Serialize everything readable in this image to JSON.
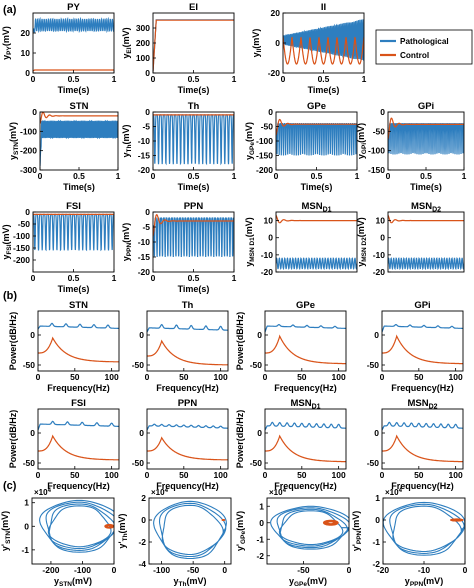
{
  "figure": {
    "panel_labels": [
      "(a)",
      "(b)",
      "(c)"
    ],
    "legend": {
      "placement": "right of row 1",
      "entries": [
        {
          "name": "Pathological",
          "color": "#2e7ebf"
        },
        {
          "name": "Control",
          "color": "#d95319"
        }
      ]
    },
    "colors": {
      "pathological": "#2e7ebf",
      "control": "#d95319"
    }
  },
  "chart_data": [
    {
      "id": "a_py",
      "type": "line",
      "title": "PY",
      "xlabel": "Time(s)",
      "ylabel": "y_PY(mV)",
      "xlim": [
        0,
        1
      ],
      "xticks": [
        "0",
        "0.5",
        "1"
      ],
      "ylim": [
        0,
        30
      ],
      "yticks": [
        "0",
        "10",
        "20"
      ],
      "series": [
        {
          "name": "Pathological",
          "pattern": "osc",
          "start": 20,
          "mid": 24,
          "amp": 3,
          "cycles": 38,
          "rise": 0.03
        },
        {
          "name": "Control",
          "pattern": "flat",
          "start": 1,
          "value": 1.5
        }
      ]
    },
    {
      "id": "a_ei",
      "type": "line",
      "title": "EI",
      "xlabel": "Time(s)",
      "ylabel": "y_EI(mV)",
      "xlim": [
        0,
        1
      ],
      "xticks": [
        "0",
        "0.5",
        "1"
      ],
      "ylim": [
        0,
        400
      ],
      "yticks": [
        "0",
        "100",
        "200",
        "300"
      ],
      "series": [
        {
          "name": "Pathological",
          "pattern": "rise",
          "start": 10,
          "value": 355,
          "rise": 0.04
        },
        {
          "name": "Control",
          "pattern": "rise",
          "start": 10,
          "value": 352,
          "rise": 0.04
        }
      ]
    },
    {
      "id": "a_ii",
      "type": "line",
      "title": "II",
      "xlabel": "Time(s)",
      "ylabel": "y_II(mV)",
      "xlim": [
        0,
        1
      ],
      "xticks": [
        "0",
        "0.5",
        "1"
      ],
      "ylim": [
        -20,
        20
      ],
      "yticks": [
        "-20",
        "0",
        "20"
      ],
      "series": [
        {
          "name": "Pathological",
          "pattern": "widen",
          "start": 0,
          "mid": 2,
          "amp": 14,
          "amp0": 3,
          "cycles": 55
        },
        {
          "name": "Control",
          "pattern": "scallop",
          "start": 0,
          "top": 4,
          "bottom": -14,
          "cycles": 9
        }
      ]
    },
    {
      "id": "a_stn",
      "type": "line",
      "title": "STN",
      "xlabel": "Time(s)",
      "ylabel": "y_STN(mV)",
      "xlim": [
        0,
        1
      ],
      "xticks": [
        "0",
        "0.5",
        "1"
      ],
      "ylim": [
        -300,
        0
      ],
      "yticks": [
        "-300",
        "-200",
        "-100",
        "0"
      ],
      "series": [
        {
          "name": "Pathological",
          "pattern": "osc",
          "start": -280,
          "mid": -90,
          "amp": 45,
          "cycles": 55,
          "rise": 0.02
        },
        {
          "name": "Control",
          "pattern": "damp",
          "start": -60,
          "value": -20,
          "cycles": 12
        }
      ]
    },
    {
      "id": "a_th",
      "type": "line",
      "title": "Th",
      "xlabel": "Time(s)",
      "ylabel": "y_Th(mV)",
      "xlim": [
        0,
        1
      ],
      "xticks": [
        "0",
        "0.5",
        "1"
      ],
      "ylim": [
        -20,
        0
      ],
      "yticks": [
        "-20",
        "-15",
        "-10",
        "-5",
        "0"
      ],
      "series": [
        {
          "name": "Pathological",
          "pattern": "spikes",
          "start": -1,
          "top": -1,
          "bottom": -18,
          "cycles": 22
        },
        {
          "name": "Control",
          "pattern": "flat",
          "start": -1,
          "value": -1
        }
      ]
    },
    {
      "id": "a_gpe",
      "type": "line",
      "title": "GPe",
      "xlabel": "Time(s)",
      "ylabel": "y_GPe(mV)",
      "xlim": [
        0,
        1
      ],
      "xticks": [
        "0",
        "0.5",
        "1"
      ],
      "ylim": [
        -200,
        0
      ],
      "yticks": [
        "-200",
        "-150",
        "-100",
        "-50",
        "0"
      ],
      "series": [
        {
          "name": "Pathological",
          "pattern": "spikes",
          "start": -60,
          "top": -40,
          "bottom": -150,
          "cycles": 38
        },
        {
          "name": "Control",
          "pattern": "damp",
          "start": -80,
          "value": -42,
          "cycles": 10
        }
      ]
    },
    {
      "id": "a_gpi",
      "type": "line",
      "title": "GPi",
      "xlabel": "Time(s)",
      "ylabel": "y_GPi(mV)",
      "xlim": [
        0,
        1
      ],
      "xticks": [
        "0",
        "0.5",
        "1"
      ],
      "ylim": [
        -150,
        0
      ],
      "yticks": [
        "-150",
        "-100",
        "-50",
        "0"
      ],
      "series": [
        {
          "name": "Pathological",
          "pattern": "spikes",
          "start": -60,
          "top": -30,
          "bottom": -110,
          "cycles": 38
        },
        {
          "name": "Control",
          "pattern": "damp",
          "start": -70,
          "value": -32,
          "cycles": 10
        }
      ]
    },
    {
      "id": "a_fsi",
      "type": "line",
      "title": "FSI",
      "xlabel": "Time(s)",
      "ylabel": "y_FSI(mV)",
      "xlim": [
        0,
        1
      ],
      "xticks": [
        "0",
        "0.5",
        "1"
      ],
      "ylim": [
        -250,
        0
      ],
      "yticks": [
        "-200",
        "-150",
        "-100",
        "-50",
        "0"
      ],
      "series": [
        {
          "name": "Pathological",
          "pattern": "spikes",
          "start": -10,
          "top": -10,
          "bottom": -160,
          "cycles": 22
        },
        {
          "name": "Control",
          "pattern": "flat",
          "start": -10,
          "value": -10
        }
      ]
    },
    {
      "id": "a_ppn",
      "type": "line",
      "title": "PPN",
      "xlabel": "Time(s)",
      "ylabel": "y_PPN(mV)",
      "xlim": [
        0,
        1
      ],
      "xticks": [
        "0",
        "0.5",
        "1"
      ],
      "ylim": [
        -20,
        0
      ],
      "yticks": [
        "-20",
        "-15",
        "-10",
        "-5",
        "0"
      ],
      "series": [
        {
          "name": "Pathological",
          "pattern": "spikes",
          "start": -5,
          "top": -2,
          "bottom": -15,
          "cycles": 30
        },
        {
          "name": "Control",
          "pattern": "damp",
          "start": -8,
          "value": -3,
          "cycles": 10
        }
      ]
    },
    {
      "id": "a_msnd1",
      "type": "line",
      "title": "MSN",
      "title_sub": "D1",
      "xlabel": "",
      "ylabel": "y_MSN_D1(mV)",
      "xlim": [
        0,
        1
      ],
      "xticks": [],
      "ylim": [
        -20,
        15
      ],
      "yticks": [
        "-20",
        "-10",
        "0",
        "10"
      ],
      "series": [
        {
          "name": "Pathological",
          "pattern": "osc",
          "start": -14,
          "mid": -15,
          "amp": 3,
          "cycles": 30,
          "rise": 0
        },
        {
          "name": "Control",
          "pattern": "damp",
          "start": 13,
          "value": 10,
          "cycles": 10
        }
      ]
    },
    {
      "id": "a_msnd2",
      "type": "line",
      "title": "MSN",
      "title_sub": "D2",
      "xlabel": "",
      "ylabel": "y_MSN_D2(mV)",
      "xlim": [
        0,
        1
      ],
      "xticks": [],
      "ylim": [
        -20,
        15
      ],
      "yticks": [
        "-20",
        "-10",
        "0",
        "10"
      ],
      "series": [
        {
          "name": "Pathological",
          "pattern": "osc",
          "start": -14,
          "mid": -15,
          "amp": 3,
          "cycles": 30,
          "rise": 0
        },
        {
          "name": "Control",
          "pattern": "damp",
          "start": 13,
          "value": 10,
          "cycles": 10
        }
      ]
    },
    {
      "id": "b_stn",
      "type": "line",
      "title": "STN",
      "xlabel": "Frequency(Hz)",
      "ylabel": "Power(dB/Hz)",
      "xlim": [
        0,
        110
      ],
      "xticks": [
        "0",
        "50",
        "100"
      ],
      "ylim": [
        -60,
        40
      ],
      "yticks": [
        "-50",
        "0"
      ],
      "series": [
        {
          "name": "Pathological",
          "pattern": "peaks",
          "start": 10,
          "base": 15,
          "peak": 20,
          "f0": 19,
          "n": 5
        },
        {
          "name": "Control",
          "pattern": "decay",
          "start": -30,
          "peak": -5,
          "f0": 20,
          "end": -45
        }
      ]
    },
    {
      "id": "b_th",
      "type": "line",
      "title": "Th",
      "xlabel": "Frequency(Hz)",
      "ylabel": "",
      "xlim": [
        0,
        110
      ],
      "xticks": [
        "0",
        "50",
        "100"
      ],
      "ylim": [
        -60,
        40
      ],
      "yticks": [
        "-50",
        "0"
      ],
      "series": [
        {
          "name": "Pathological",
          "pattern": "peaks",
          "start": 5,
          "base": 12,
          "peak": 18,
          "f0": 20,
          "n": 5
        },
        {
          "name": "Control",
          "pattern": "decay",
          "start": -35,
          "peak": -10,
          "f0": 20,
          "end": -50
        }
      ]
    },
    {
      "id": "b_gpe",
      "type": "line",
      "title": "GPe",
      "xlabel": "Frequency(Hz)",
      "ylabel": "Power(dB/Hz)",
      "xlim": [
        0,
        110
      ],
      "xticks": [
        "0",
        "50",
        "100"
      ],
      "ylim": [
        -60,
        40
      ],
      "yticks": [
        "-50",
        "0"
      ],
      "series": [
        {
          "name": "Pathological",
          "pattern": "peaks",
          "start": 5,
          "base": 15,
          "peak": 18,
          "f0": 19,
          "n": 5
        },
        {
          "name": "Control",
          "pattern": "decay",
          "start": -30,
          "peak": -2,
          "f0": 20,
          "end": -48
        }
      ]
    },
    {
      "id": "b_gpi",
      "type": "line",
      "title": "GPi",
      "xlabel": "Frequency(Hz)",
      "ylabel": "",
      "xlim": [
        0,
        110
      ],
      "xticks": [
        "0",
        "50",
        "100"
      ],
      "ylim": [
        -60,
        40
      ],
      "yticks": [
        "-50",
        "0"
      ],
      "series": [
        {
          "name": "Pathological",
          "pattern": "peaks",
          "start": 5,
          "base": 15,
          "peak": 18,
          "f0": 19,
          "n": 5
        },
        {
          "name": "Control",
          "pattern": "decay",
          "start": -30,
          "peak": -2,
          "f0": 20,
          "end": -48
        }
      ]
    },
    {
      "id": "b_fsi",
      "type": "line",
      "title": "FSI",
      "xlabel": "Frequency(Hz)",
      "ylabel": "Power(dB/Hz)",
      "xlim": [
        0,
        110
      ],
      "xticks": [
        "0",
        "50",
        "100"
      ],
      "ylim": [
        -60,
        40
      ],
      "yticks": [
        "-50",
        "0"
      ],
      "series": [
        {
          "name": "Pathological",
          "pattern": "peaks",
          "start": 5,
          "base": 15,
          "peak": 20,
          "f0": 20,
          "n": 5
        },
        {
          "name": "Control",
          "pattern": "decay",
          "start": -30,
          "peak": -5,
          "f0": 20,
          "end": -45
        }
      ]
    },
    {
      "id": "b_ppn",
      "type": "line",
      "title": "PPN",
      "xlabel": "Frequency(Hz)",
      "ylabel": "",
      "xlim": [
        0,
        110
      ],
      "xticks": [
        "0",
        "50",
        "100"
      ],
      "ylim": [
        -60,
        40
      ],
      "yticks": [
        "-50",
        "0"
      ],
      "series": [
        {
          "name": "Pathological",
          "pattern": "peaks",
          "start": 5,
          "base": 12,
          "peak": 15,
          "f0": 10,
          "n": 10
        },
        {
          "name": "Control",
          "pattern": "decay",
          "start": -30,
          "peak": -8,
          "f0": 20,
          "end": -45
        }
      ]
    },
    {
      "id": "b_msnd1",
      "type": "line",
      "title": "MSN",
      "title_sub": "D1",
      "xlabel": "Frequency(Hz)",
      "ylabel": "Power(dB/Hz)",
      "xlim": [
        0,
        110
      ],
      "xticks": [
        "0",
        "50",
        "100"
      ],
      "ylim": [
        -60,
        40
      ],
      "yticks": [
        "-50",
        "0"
      ],
      "series": [
        {
          "name": "Pathological",
          "pattern": "peaks",
          "start": 5,
          "base": 12,
          "peak": 18,
          "f0": 10,
          "n": 10
        },
        {
          "name": "Control",
          "pattern": "decay",
          "start": -30,
          "peak": -5,
          "f0": 20,
          "end": -48
        }
      ]
    },
    {
      "id": "b_msnd2",
      "type": "line",
      "title": "MSN",
      "title_sub": "D2",
      "xlabel": "Frequency(Hz)",
      "ylabel": "",
      "xlim": [
        0,
        110
      ],
      "xticks": [
        "0",
        "50",
        "100"
      ],
      "ylim": [
        -60,
        40
      ],
      "yticks": [
        "-50",
        "0"
      ],
      "series": [
        {
          "name": "Pathological",
          "pattern": "peaks",
          "start": 5,
          "base": 12,
          "peak": 18,
          "f0": 10,
          "n": 10
        },
        {
          "name": "Control",
          "pattern": "decay",
          "start": -30,
          "peak": -5,
          "f0": 20,
          "end": -48
        }
      ]
    },
    {
      "id": "c_stn",
      "type": "scatter",
      "title": "",
      "xlabel": "y_STN(mV)",
      "ylabel": "y'_STN(mV)",
      "exponent": "×10^4",
      "xlim": [
        -260,
        0
      ],
      "xticks": [
        "-200",
        "-100",
        "0"
      ],
      "ylim": [
        -1.6,
        1.2
      ],
      "yticks": [
        "-1",
        "0",
        "1"
      ],
      "series": [
        {
          "name": "Pathological",
          "pattern": "orbit",
          "cx": -110,
          "cy": 0,
          "rx": 120,
          "ry": 1.1,
          "loops": 4
        },
        {
          "name": "Control",
          "pattern": "spot",
          "cx": -15,
          "cy": 0,
          "rx": 14,
          "ry": 0.08
        }
      ]
    },
    {
      "id": "c_th",
      "type": "scatter",
      "title": "",
      "xlabel": "y_Th(mV)",
      "ylabel": "y'_Th(mV)",
      "exponent": "×10^4",
      "xlim": [
        -120,
        10
      ],
      "xticks": [
        "-100",
        "-50",
        "0"
      ],
      "ylim": [
        -4,
        2
      ],
      "yticks": [
        "-4",
        "-2",
        "0",
        "2"
      ],
      "series": [
        {
          "name": "Pathological",
          "pattern": "orbit",
          "cx": -55,
          "cy": -0.9,
          "rx": 55,
          "ry": 2.6,
          "loops": 3
        },
        {
          "name": "Control",
          "pattern": "spot",
          "cx": -2,
          "cy": 0,
          "rx": 2,
          "ry": 0.05
        }
      ]
    },
    {
      "id": "c_gpe",
      "type": "scatter",
      "title": "",
      "xlabel": "y_GPe(mV)",
      "ylabel": "y'_GPe(mV)",
      "exponent": "×10^4",
      "xlim": [
        -90,
        0
      ],
      "xticks": [
        "-50",
        "0"
      ],
      "ylim": [
        -2.5,
        1.5
      ],
      "yticks": [
        "-2",
        "-1",
        "0",
        "1"
      ],
      "series": [
        {
          "name": "Pathological",
          "pattern": "orbit",
          "cx": -42,
          "cy": -0.3,
          "rx": 42,
          "ry": 1.3,
          "loops": 4
        },
        {
          "name": "Control",
          "pattern": "spot",
          "cx": -20,
          "cy": 0,
          "rx": 8,
          "ry": 0.15
        }
      ]
    },
    {
      "id": "c_ppn",
      "type": "scatter",
      "title": "",
      "xlabel": "y_PPN(mV)",
      "ylabel": "y'_PPN(mV)",
      "exponent": "×10^4",
      "xlim": [
        -20,
        0
      ],
      "xticks": [
        "-20",
        "-10",
        "0"
      ],
      "ylim": [
        -2,
        1
      ],
      "yticks": [
        "-2",
        "-1",
        "0",
        "1"
      ],
      "series": [
        {
          "name": "Pathological",
          "pattern": "orbit",
          "cx": -10,
          "cy": -0.4,
          "rx": 9.5,
          "ry": 1.2,
          "loops": 3
        },
        {
          "name": "Control",
          "pattern": "spot",
          "cx": -2,
          "cy": 0,
          "rx": 1.5,
          "ry": 0.05
        }
      ]
    }
  ]
}
